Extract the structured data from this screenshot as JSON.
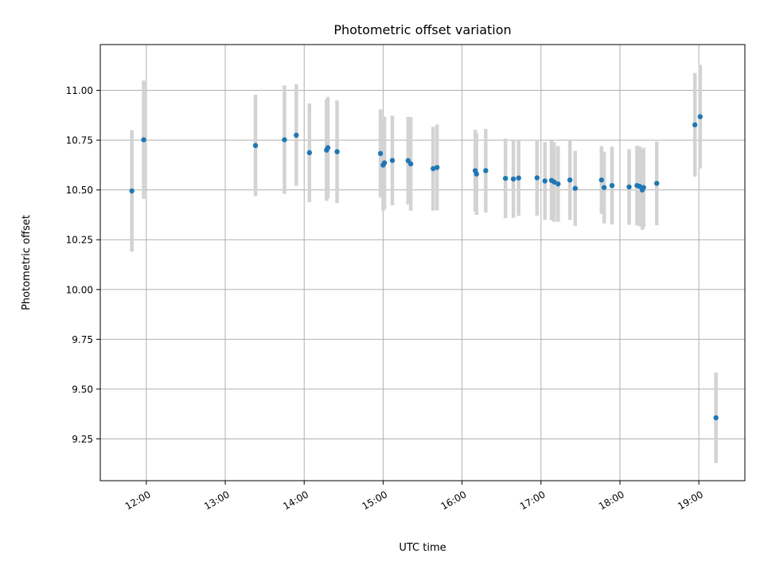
{
  "chart_data": {
    "type": "scatter",
    "title": "Photometric offset variation",
    "xlabel": "UTC time",
    "ylabel": "Photometric offset",
    "grid": true,
    "xlim": [
      "11:25",
      "19:35"
    ],
    "ylim": [
      9.04,
      11.23
    ],
    "x_ticks": [
      "12:00",
      "13:00",
      "14:00",
      "15:00",
      "16:00",
      "17:00",
      "18:00",
      "19:00"
    ],
    "y_ticks": [
      "9.25",
      "9.50",
      "9.75",
      "10.00",
      "10.25",
      "10.50",
      "10.75",
      "11.00"
    ],
    "colors": {
      "point": "#1f77b4",
      "error_bar": "#d3d3d3"
    },
    "series": [
      {
        "x": [
          "11:49",
          "11:58",
          "13:23",
          "13:45",
          "13:54",
          "14:04",
          "14:17",
          "14:18",
          "14:25",
          "14:58",
          "15:00",
          "15:01",
          "15:07",
          "15:19",
          "15:21",
          "15:38",
          "15:41",
          "16:10",
          "16:11",
          "16:18",
          "16:33",
          "16:39",
          "16:43",
          "16:57",
          "17:03",
          "17:08",
          "17:10",
          "17:13",
          "17:22",
          "17:26",
          "17:46",
          "17:48",
          "17:54",
          "18:07",
          "18:13",
          "18:15",
          "18:17",
          "18:18",
          "18:28",
          "18:57",
          "19:01",
          "19:13"
        ],
        "y": [
          10.495,
          10.752,
          10.723,
          10.752,
          10.775,
          10.687,
          10.7,
          10.712,
          10.692,
          10.683,
          10.625,
          10.636,
          10.648,
          10.647,
          10.631,
          10.607,
          10.613,
          10.597,
          10.58,
          10.597,
          10.558,
          10.555,
          10.56,
          10.561,
          10.545,
          10.548,
          10.54,
          10.53,
          10.55,
          10.508,
          10.55,
          10.512,
          10.522,
          10.515,
          10.522,
          10.518,
          10.5,
          10.512,
          10.533,
          10.827,
          10.868,
          9.356
        ],
        "yerr": [
          0.305,
          0.297,
          0.255,
          0.272,
          0.255,
          0.248,
          0.255,
          0.255,
          0.258,
          0.222,
          0.23,
          0.232,
          0.225,
          0.22,
          0.235,
          0.21,
          0.215,
          0.205,
          0.205,
          0.21,
          0.2,
          0.195,
          0.19,
          0.19,
          0.195,
          0.2,
          0.2,
          0.19,
          0.2,
          0.188,
          0.17,
          0.18,
          0.195,
          0.19,
          0.2,
          0.2,
          0.2,
          0.2,
          0.21,
          0.26,
          0.26,
          0.227
        ]
      }
    ]
  }
}
